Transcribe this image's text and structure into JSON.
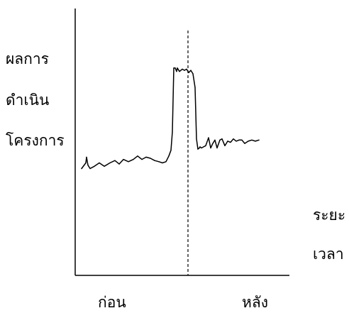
{
  "chart_data": {
    "type": "line",
    "title": "",
    "ylabel_lines": [
      "ผลการ",
      "ดำเนิน",
      "โครงการ"
    ],
    "xlabel_lines": [
      "ระยะ",
      "เวลา"
    ],
    "category_labels": [
      "ก่อน",
      "หลัง"
    ],
    "grid": false,
    "legend": "none",
    "divider": {
      "style": "dashed",
      "at_x": 0.6
    },
    "series": [
      {
        "x": [
          0.0,
          0.024,
          0.028,
          0.036,
          0.048,
          0.072,
          0.1,
          0.128,
          0.16,
          0.188,
          0.212,
          0.236,
          0.264,
          0.292,
          0.316,
          0.34,
          0.364,
          0.388,
          0.412,
          0.436,
          0.456,
          0.476,
          0.492,
          0.504,
          0.512,
          0.52,
          0.528,
          0.536,
          0.54,
          0.552,
          0.568,
          0.58,
          0.592,
          0.604,
          0.616,
          0.628,
          0.64,
          0.648,
          0.656,
          0.664,
          0.668,
          0.676,
          0.688,
          0.7,
          0.716,
          0.728,
          0.74,
          0.752,
          0.764,
          0.78,
          0.792,
          0.808,
          0.824,
          0.84,
          0.856,
          0.872,
          0.888,
          0.904,
          0.92,
          0.94,
          0.96,
          0.98,
          1.0
        ],
        "y": [
          0.09,
          0.14,
          0.19,
          0.12,
          0.09,
          0.11,
          0.14,
          0.11,
          0.14,
          0.16,
          0.13,
          0.17,
          0.15,
          0.17,
          0.2,
          0.17,
          0.19,
          0.18,
          0.16,
          0.15,
          0.14,
          0.15,
          0.2,
          0.25,
          0.41,
          0.97,
          0.97,
          0.94,
          0.97,
          0.94,
          0.96,
          0.95,
          0.96,
          0.93,
          0.95,
          0.92,
          0.8,
          0.35,
          0.26,
          0.27,
          0.28,
          0.27,
          0.28,
          0.29,
          0.36,
          0.27,
          0.31,
          0.34,
          0.27,
          0.34,
          0.35,
          0.29,
          0.33,
          0.32,
          0.35,
          0.33,
          0.34,
          0.34,
          0.31,
          0.33,
          0.34,
          0.33,
          0.34
        ]
      }
    ]
  }
}
